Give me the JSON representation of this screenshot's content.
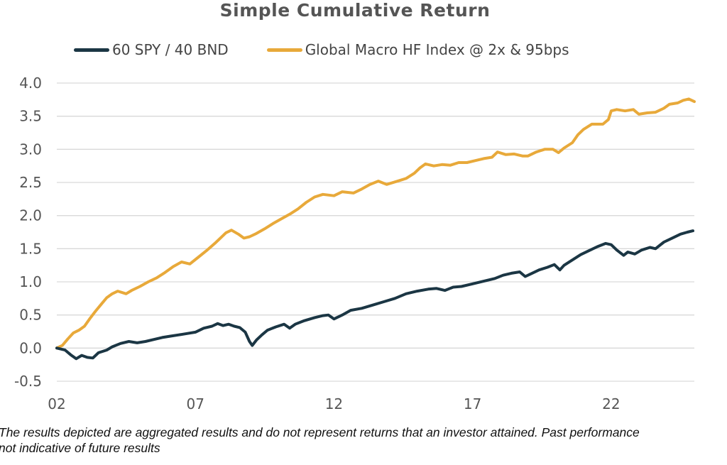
{
  "chart_data": {
    "type": "line",
    "title": "Simple Cumulative Return",
    "xlabel": "",
    "ylabel": "",
    "x_range": [
      2002.0,
      2025.0
    ],
    "ylim": [
      -0.5,
      4.0
    ],
    "y_ticks": [
      -0.5,
      0.0,
      0.5,
      1.0,
      1.5,
      2.0,
      2.5,
      3.0,
      3.5,
      4.0
    ],
    "y_tick_labels": [
      "-0.5",
      "0.0",
      "0.5",
      "1.0",
      "1.5",
      "2.0",
      "2.5",
      "3.0",
      "3.5",
      "4.0"
    ],
    "x_ticks": [
      2002,
      2007,
      2012,
      2017,
      2022
    ],
    "x_tick_labels": [
      "02",
      "07",
      "12",
      "17",
      "22"
    ],
    "grid": "horizontal",
    "legend_position": "top",
    "series": [
      {
        "name": "60 SPY / 40 BND",
        "color": "#1b3644",
        "points": [
          [
            2002.0,
            0.0
          ],
          [
            2002.3,
            -0.03
          ],
          [
            2002.5,
            -0.1
          ],
          [
            2002.7,
            -0.16
          ],
          [
            2002.9,
            -0.11
          ],
          [
            2003.1,
            -0.14
          ],
          [
            2003.3,
            -0.15
          ],
          [
            2003.5,
            -0.07
          ],
          [
            2003.8,
            -0.03
          ],
          [
            2004.0,
            0.02
          ],
          [
            2004.3,
            0.07
          ],
          [
            2004.6,
            0.1
          ],
          [
            2004.9,
            0.08
          ],
          [
            2005.2,
            0.1
          ],
          [
            2005.5,
            0.13
          ],
          [
            2005.8,
            0.16
          ],
          [
            2006.1,
            0.18
          ],
          [
            2006.4,
            0.2
          ],
          [
            2006.7,
            0.22
          ],
          [
            2007.0,
            0.24
          ],
          [
            2007.3,
            0.3
          ],
          [
            2007.6,
            0.33
          ],
          [
            2007.8,
            0.37
          ],
          [
            2008.0,
            0.34
          ],
          [
            2008.2,
            0.36
          ],
          [
            2008.4,
            0.33
          ],
          [
            2008.6,
            0.31
          ],
          [
            2008.8,
            0.24
          ],
          [
            2008.95,
            0.1
          ],
          [
            2009.05,
            0.04
          ],
          [
            2009.2,
            0.12
          ],
          [
            2009.4,
            0.2
          ],
          [
            2009.6,
            0.27
          ],
          [
            2009.9,
            0.32
          ],
          [
            2010.2,
            0.36
          ],
          [
            2010.4,
            0.3
          ],
          [
            2010.6,
            0.36
          ],
          [
            2010.9,
            0.41
          ],
          [
            2011.3,
            0.46
          ],
          [
            2011.6,
            0.49
          ],
          [
            2011.8,
            0.5
          ],
          [
            2012.0,
            0.44
          ],
          [
            2012.3,
            0.5
          ],
          [
            2012.6,
            0.57
          ],
          [
            2013.0,
            0.6
          ],
          [
            2013.4,
            0.65
          ],
          [
            2013.8,
            0.7
          ],
          [
            2014.2,
            0.75
          ],
          [
            2014.6,
            0.82
          ],
          [
            2015.0,
            0.86
          ],
          [
            2015.4,
            0.89
          ],
          [
            2015.7,
            0.9
          ],
          [
            2016.0,
            0.87
          ],
          [
            2016.3,
            0.92
          ],
          [
            2016.6,
            0.93
          ],
          [
            2017.0,
            0.97
          ],
          [
            2017.4,
            1.01
          ],
          [
            2017.8,
            1.05
          ],
          [
            2018.1,
            1.1
          ],
          [
            2018.4,
            1.13
          ],
          [
            2018.7,
            1.15
          ],
          [
            2018.9,
            1.08
          ],
          [
            2019.1,
            1.12
          ],
          [
            2019.4,
            1.18
          ],
          [
            2019.7,
            1.22
          ],
          [
            2019.95,
            1.26
          ],
          [
            2020.15,
            1.18
          ],
          [
            2020.3,
            1.25
          ],
          [
            2020.6,
            1.33
          ],
          [
            2020.9,
            1.41
          ],
          [
            2021.2,
            1.47
          ],
          [
            2021.5,
            1.53
          ],
          [
            2021.8,
            1.58
          ],
          [
            2022.0,
            1.56
          ],
          [
            2022.2,
            1.48
          ],
          [
            2022.45,
            1.4
          ],
          [
            2022.6,
            1.45
          ],
          [
            2022.85,
            1.42
          ],
          [
            2023.1,
            1.48
          ],
          [
            2023.4,
            1.52
          ],
          [
            2023.6,
            1.5
          ],
          [
            2023.9,
            1.6
          ],
          [
            2024.2,
            1.66
          ],
          [
            2024.5,
            1.72
          ],
          [
            2024.75,
            1.75
          ],
          [
            2024.95,
            1.77
          ]
        ]
      },
      {
        "name": "Global Macro HF Index @ 2x & 95bps",
        "color": "#e8a93a",
        "points": [
          [
            2002.0,
            0.0
          ],
          [
            2002.2,
            0.04
          ],
          [
            2002.4,
            0.14
          ],
          [
            2002.6,
            0.23
          ],
          [
            2002.8,
            0.27
          ],
          [
            2003.0,
            0.33
          ],
          [
            2003.2,
            0.45
          ],
          [
            2003.4,
            0.56
          ],
          [
            2003.6,
            0.66
          ],
          [
            2003.8,
            0.76
          ],
          [
            2004.0,
            0.82
          ],
          [
            2004.2,
            0.86
          ],
          [
            2004.5,
            0.82
          ],
          [
            2004.7,
            0.87
          ],
          [
            2005.0,
            0.93
          ],
          [
            2005.3,
            1.0
          ],
          [
            2005.6,
            1.06
          ],
          [
            2005.9,
            1.14
          ],
          [
            2006.2,
            1.23
          ],
          [
            2006.5,
            1.3
          ],
          [
            2006.8,
            1.27
          ],
          [
            2007.1,
            1.37
          ],
          [
            2007.4,
            1.47
          ],
          [
            2007.7,
            1.58
          ],
          [
            2007.9,
            1.66
          ],
          [
            2008.1,
            1.74
          ],
          [
            2008.3,
            1.78
          ],
          [
            2008.55,
            1.72
          ],
          [
            2008.75,
            1.66
          ],
          [
            2008.95,
            1.68
          ],
          [
            2009.2,
            1.73
          ],
          [
            2009.5,
            1.8
          ],
          [
            2009.8,
            1.88
          ],
          [
            2010.1,
            1.95
          ],
          [
            2010.4,
            2.02
          ],
          [
            2010.7,
            2.1
          ],
          [
            2011.0,
            2.2
          ],
          [
            2011.3,
            2.28
          ],
          [
            2011.6,
            2.32
          ],
          [
            2012.0,
            2.3
          ],
          [
            2012.3,
            2.36
          ],
          [
            2012.7,
            2.34
          ],
          [
            2013.0,
            2.4
          ],
          [
            2013.3,
            2.47
          ],
          [
            2013.6,
            2.52
          ],
          [
            2013.9,
            2.47
          ],
          [
            2014.3,
            2.52
          ],
          [
            2014.6,
            2.56
          ],
          [
            2014.9,
            2.64
          ],
          [
            2015.1,
            2.72
          ],
          [
            2015.3,
            2.78
          ],
          [
            2015.6,
            2.75
          ],
          [
            2015.9,
            2.77
          ],
          [
            2016.2,
            2.76
          ],
          [
            2016.5,
            2.8
          ],
          [
            2016.8,
            2.8
          ],
          [
            2017.1,
            2.83
          ],
          [
            2017.4,
            2.86
          ],
          [
            2017.7,
            2.88
          ],
          [
            2017.9,
            2.96
          ],
          [
            2018.2,
            2.92
          ],
          [
            2018.5,
            2.93
          ],
          [
            2018.8,
            2.9
          ],
          [
            2019.0,
            2.9
          ],
          [
            2019.3,
            2.96
          ],
          [
            2019.6,
            3.0
          ],
          [
            2019.9,
            3.0
          ],
          [
            2020.1,
            2.95
          ],
          [
            2020.3,
            3.02
          ],
          [
            2020.6,
            3.1
          ],
          [
            2020.8,
            3.22
          ],
          [
            2021.0,
            3.3
          ],
          [
            2021.3,
            3.38
          ],
          [
            2021.7,
            3.38
          ],
          [
            2021.9,
            3.45
          ],
          [
            2022.0,
            3.58
          ],
          [
            2022.2,
            3.6
          ],
          [
            2022.5,
            3.58
          ],
          [
            2022.8,
            3.6
          ],
          [
            2023.0,
            3.53
          ],
          [
            2023.3,
            3.55
          ],
          [
            2023.6,
            3.56
          ],
          [
            2023.9,
            3.62
          ],
          [
            2024.1,
            3.68
          ],
          [
            2024.4,
            3.7
          ],
          [
            2024.6,
            3.74
          ],
          [
            2024.8,
            3.76
          ],
          [
            2025.0,
            3.72
          ]
        ]
      }
    ]
  },
  "footnote": {
    "line1": "The results depicted are aggregated results and do not represent returns that an investor attained. Past performance",
    "line2": "not indicative of future results"
  }
}
